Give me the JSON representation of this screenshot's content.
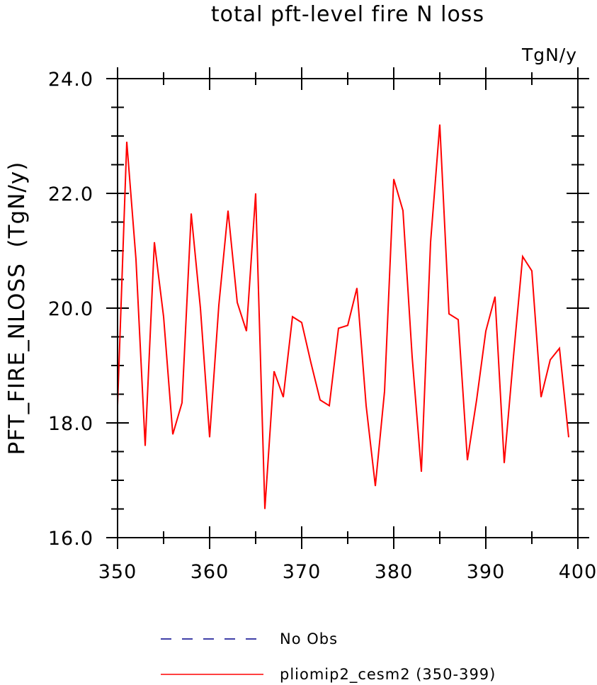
{
  "chart_data": {
    "type": "line",
    "title": "total pft-level fire N loss",
    "units": "TgN/y",
    "ylabel": "PFT_FIRE_NLOSS  (TgN/y)",
    "xlabel": "",
    "xlim": [
      350,
      400
    ],
    "ylim": [
      16.0,
      24.0
    ],
    "x_ticks": [
      350,
      360,
      370,
      380,
      390,
      400
    ],
    "y_ticks": [
      16.0,
      18.0,
      20.0,
      22.0,
      24.0
    ],
    "x_tick_labels": [
      "350",
      "360",
      "370",
      "380",
      "390",
      "400"
    ],
    "y_tick_labels": [
      "16.0",
      "18.0",
      "20.0",
      "22.0",
      "24.0"
    ],
    "grid": false,
    "legend_position": "bottom",
    "series": [
      {
        "name": "No Obs",
        "color": "#00008b",
        "style": "dashed",
        "x": [],
        "y": []
      },
      {
        "name": "pliomip2_cesm2 (350-399)",
        "color": "#ff0000",
        "style": "solid",
        "x": [
          350,
          351,
          352,
          353,
          354,
          355,
          356,
          357,
          358,
          359,
          360,
          361,
          362,
          363,
          364,
          365,
          366,
          367,
          368,
          369,
          370,
          371,
          372,
          373,
          374,
          375,
          376,
          377,
          378,
          379,
          380,
          381,
          382,
          383,
          384,
          385,
          386,
          387,
          388,
          389,
          390,
          391,
          392,
          393,
          394,
          395,
          396,
          397,
          398,
          399
        ],
        "y": [
          18.3,
          22.9,
          20.85,
          17.6,
          21.15,
          19.85,
          17.8,
          18.35,
          21.65,
          20.0,
          17.75,
          20.05,
          21.7,
          20.1,
          19.6,
          22.0,
          16.5,
          18.9,
          18.45,
          19.85,
          19.75,
          19.05,
          18.4,
          18.3,
          19.65,
          19.7,
          20.35,
          18.3,
          16.9,
          18.55,
          22.25,
          21.7,
          19.15,
          17.15,
          21.15,
          23.2,
          19.9,
          19.8,
          17.35,
          18.4,
          19.6,
          20.2,
          17.3,
          19.15,
          20.9,
          20.65,
          18.45,
          19.1,
          19.3,
          17.75
        ]
      }
    ]
  }
}
